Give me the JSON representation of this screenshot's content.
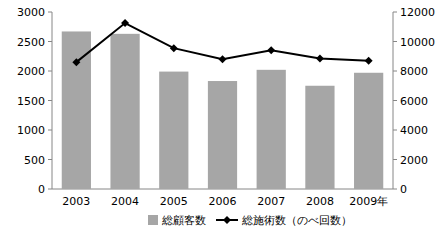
{
  "chart_data": {
    "type": "bar",
    "categories": [
      "2003",
      "2004",
      "2005",
      "2006",
      "2007",
      "2008",
      "2009年"
    ],
    "series": [
      {
        "name": "総顧客数",
        "type": "bar",
        "color": "#a6a6a6",
        "values": [
          2670,
          2630,
          1990,
          1830,
          2020,
          1750,
          1970
        ]
      },
      {
        "name": "総施術数（のべ回数）",
        "type": "line",
        "color": "#000000",
        "marker": "diamond",
        "axis": "y2",
        "values": [
          8600,
          11250,
          9550,
          8800,
          9400,
          8850,
          8700
        ]
      }
    ],
    "ylim": [
      0,
      3000
    ],
    "yticks": [
      0,
      500,
      1000,
      1500,
      2000,
      2500,
      3000
    ],
    "y2lim": [
      0,
      12000
    ],
    "y2ticks": [
      0,
      2000,
      4000,
      6000,
      8000,
      10000,
      12000
    ],
    "grid": false,
    "legend": "bottom"
  }
}
